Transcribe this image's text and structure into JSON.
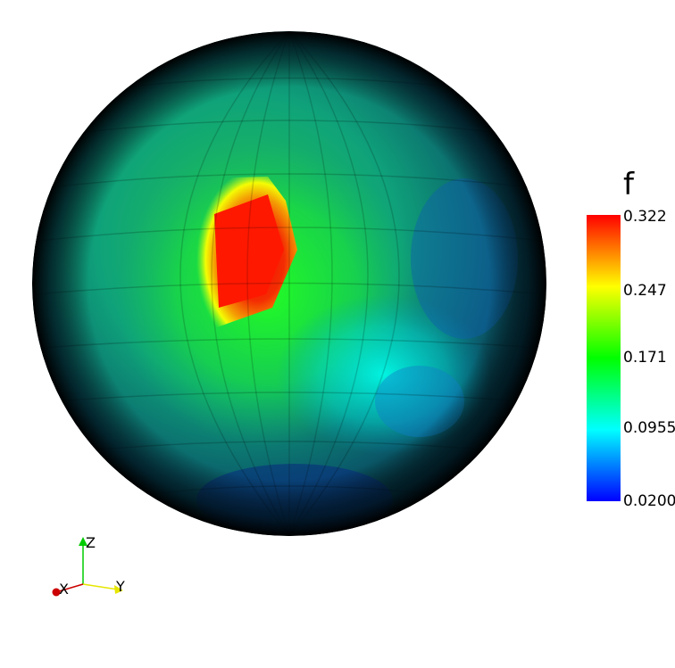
{
  "legend": {
    "title": "f",
    "ticks": [
      "0.322",
      "0.247",
      "0.171",
      "0.0955",
      "0.0200"
    ],
    "colors": [
      "#ff0000",
      "#ffff00",
      "#00ff00",
      "#00ffff",
      "#0000ff"
    ]
  },
  "axes": {
    "x_label": "X",
    "y_label": "Y",
    "z_label": "Z",
    "x_color": "#cc0000",
    "y_color": "#e6e600",
    "z_color": "#00cc00"
  }
}
